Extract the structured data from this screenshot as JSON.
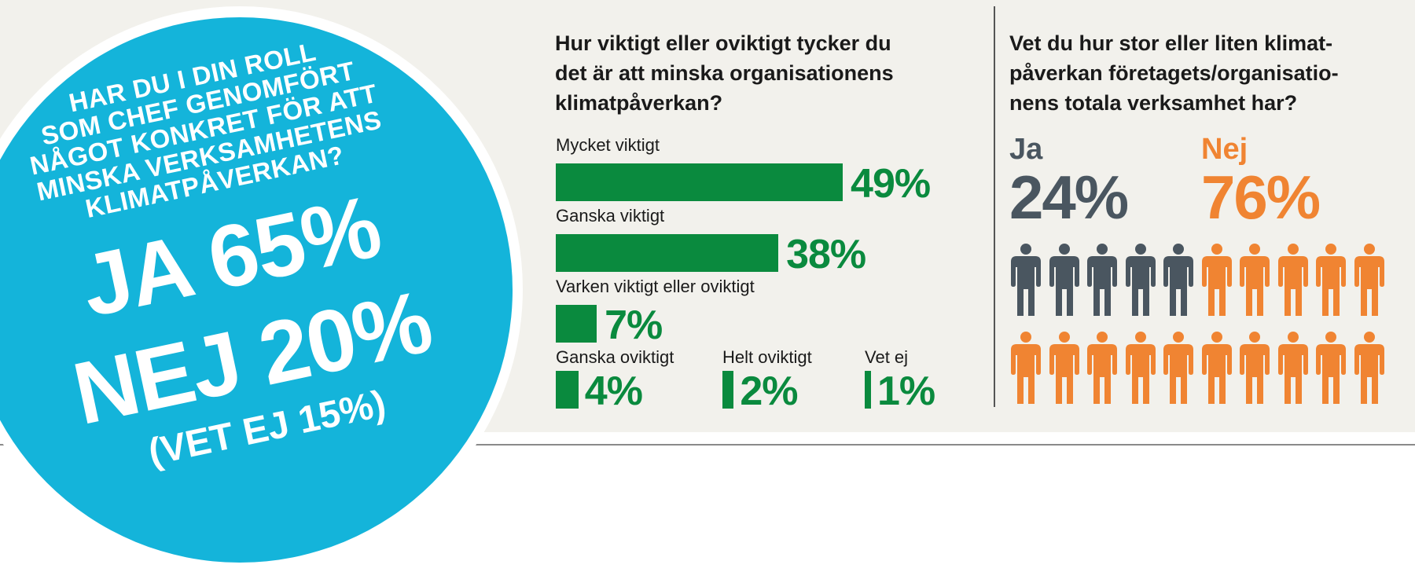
{
  "colors": {
    "circle": "#14b4da",
    "green": "#0a8a3e",
    "ja": "#4a5660",
    "nej": "#f08432"
  },
  "circle": {
    "question": "HAR DU I DIN ROLL\nSOM CHEF GENOMFÖRT\nNÅGOT KONKRET FÖR ATT\nMINSKA VERKSAMHETENS\nKLIMATPÅVERKAN?",
    "ja": "JA 65%",
    "nej": "NEJ 20%",
    "vetej": "(VET EJ 15%)"
  },
  "chart_data": [
    {
      "type": "bar",
      "title": "Hur viktigt eller oviktigt tycker du\ndet är att minska organisationens\nklimatpåverkan?",
      "categories": [
        "Mycket viktigt",
        "Ganska viktigt",
        "Varken viktigt eller oviktigt",
        "Ganska oviktigt",
        "Helt oviktigt",
        "Vet ej"
      ],
      "values": [
        49,
        38,
        7,
        4,
        2,
        1
      ],
      "value_labels": [
        "49%",
        "38%",
        "7%",
        "4%",
        "2%",
        "1%"
      ],
      "color": "#0a8a3e"
    },
    {
      "type": "pictogram",
      "title": "Vet du hur stor eller liten klimat-\npåverkan företagets/organisatio-\nnens totala verksamhet har?",
      "categories": [
        "Ja",
        "Nej"
      ],
      "values": [
        24,
        76
      ],
      "value_labels": [
        "24%",
        "76%"
      ],
      "icons_total": 20,
      "icons": [
        5,
        15
      ],
      "colors": [
        "#4a5660",
        "#f08432"
      ]
    }
  ]
}
